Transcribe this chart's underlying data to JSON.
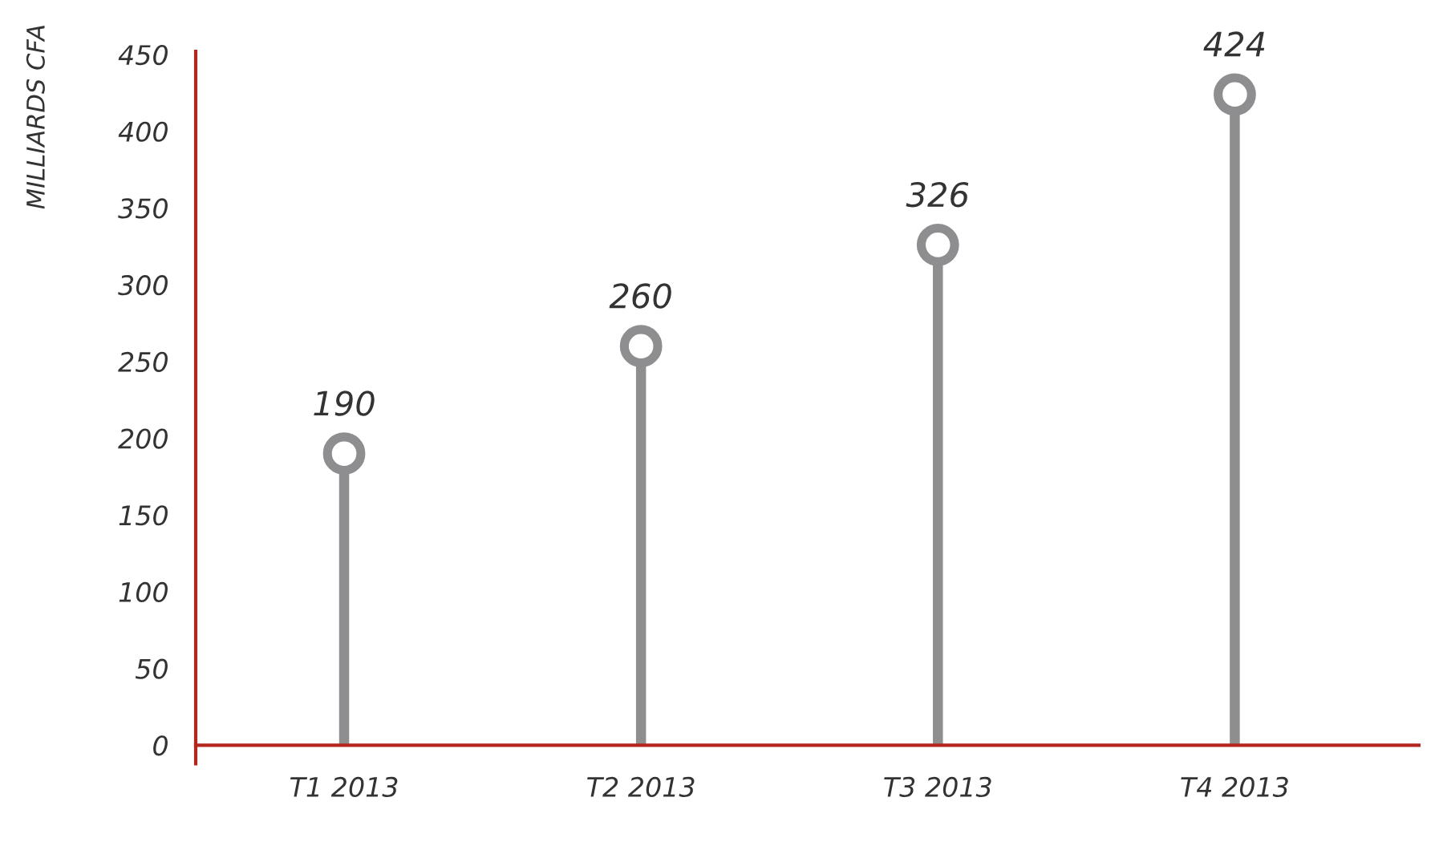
{
  "chart_data": {
    "type": "lollipop",
    "ylabel": "MILLIARDS CFA",
    "categories": [
      "T1 2013",
      "T2 2013",
      "T3 2013",
      "T4 2013"
    ],
    "values": [
      190,
      260,
      326,
      424
    ],
    "color": "#8e8e90",
    "ylim": [
      -12,
      452
    ],
    "yticks": [
      0,
      50,
      100,
      150,
      200,
      250,
      300,
      350,
      400,
      450
    ],
    "data_labels": true,
    "marker": "circle"
  }
}
